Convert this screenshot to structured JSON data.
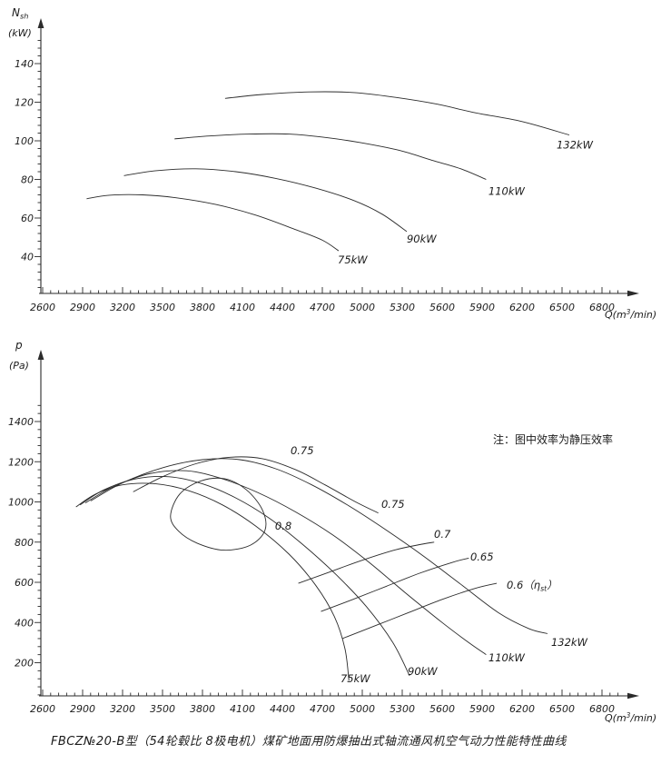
{
  "caption": "FBCZ№20-B型（54轮毂比 8极电机）煤矿地面用防爆抽出式轴流通风机空气动力性能特性曲线",
  "note": "注：图中效率为静压效率",
  "colors": {
    "line": "#2b2b2b",
    "text": "#1c1c1c",
    "background": "#ffffff"
  },
  "chart_data": [
    {
      "id": "shaft-power",
      "type": "line",
      "title": "",
      "xlabel": "Q(m³/min)",
      "ylabel": "Nsh(kW)",
      "ylabel_lines": [
        "Nsh",
        "(kW)"
      ],
      "xlim": [
        2600,
        6800
      ],
      "x_tick_step": 300,
      "x_minor_step": 60,
      "x_ticks": [
        2600,
        2900,
        3200,
        3500,
        3800,
        4100,
        4400,
        4700,
        5000,
        5300,
        5600,
        5900,
        6200,
        6500,
        6800
      ],
      "ylim": [
        40,
        140
      ],
      "y_ticks": [
        40,
        60,
        80,
        100,
        120,
        140
      ],
      "y_minor_step": 4,
      "grid": false,
      "legend": "curve-end-labels",
      "series": [
        {
          "name": "75kW",
          "kind": "shaft-power-curve",
          "points": [
            [
              2930,
              70
            ],
            [
              3100,
              71.8
            ],
            [
              3350,
              72
            ],
            [
              3600,
              70.5
            ],
            [
              3900,
              67
            ],
            [
              4200,
              61.5
            ],
            [
              4500,
              54
            ],
            [
              4700,
              48.5
            ],
            [
              4823,
              43
            ]
          ],
          "labels": [
            {
              "text": "75kW",
              "at": [
                4816,
                36.5
              ]
            }
          ]
        },
        {
          "name": "90kW",
          "kind": "shaft-power-curve",
          "points": [
            [
              3210,
              82
            ],
            [
              3450,
              84.5
            ],
            [
              3750,
              85.5
            ],
            [
              4050,
              84
            ],
            [
              4350,
              80.5
            ],
            [
              4650,
              75.5
            ],
            [
              4940,
              69
            ],
            [
              5150,
              62
            ],
            [
              5334,
              53
            ]
          ],
          "labels": [
            {
              "text": "90kW",
              "at": [
                5334,
                47.3
              ]
            }
          ]
        },
        {
          "name": "110kW",
          "kind": "shaft-power-curve",
          "points": [
            [
              3590,
              101
            ],
            [
              3850,
              102.5
            ],
            [
              4150,
              103.5
            ],
            [
              4450,
              103.5
            ],
            [
              4750,
              101.5
            ],
            [
              4990,
              99
            ],
            [
              5280,
              95
            ],
            [
              5520,
              90
            ],
            [
              5740,
              85.5
            ],
            [
              5930,
              80
            ]
          ],
          "labels": [
            {
              "text": "110kW",
              "at": [
                5947,
                72
              ]
            }
          ]
        },
        {
          "name": "132kW",
          "kind": "shaft-power-curve",
          "points": [
            [
              3970,
              122
            ],
            [
              4250,
              124
            ],
            [
              4600,
              125.3
            ],
            [
              4940,
              125
            ],
            [
              5250,
              122.5
            ],
            [
              5560,
              119
            ],
            [
              5850,
              114.5
            ],
            [
              6200,
              110
            ],
            [
              6554,
              103
            ]
          ],
          "labels": [
            {
              "text": "132kW",
              "at": [
                6459,
                96
              ]
            }
          ]
        }
      ]
    },
    {
      "id": "static-pressure",
      "type": "line",
      "title": "",
      "xlabel": "Q(m³/min)",
      "ylabel": "p(Pa)",
      "ylabel_lines": [
        "p",
        "(Pa)"
      ],
      "xlim": [
        2600,
        6800
      ],
      "x_tick_step": 300,
      "x_minor_step": 60,
      "x_ticks": [
        2600,
        2900,
        3200,
        3500,
        3800,
        4100,
        4400,
        4700,
        5000,
        5300,
        5600,
        5900,
        6200,
        6500,
        6800
      ],
      "ylim": [
        200,
        1400
      ],
      "y_ticks": [
        200,
        400,
        600,
        800,
        1000,
        1200,
        1400
      ],
      "y_minor_step": 40,
      "grid": false,
      "note": "注：图中效率为静压效率",
      "note_at": [
        5982,
        1292
      ],
      "series": [
        {
          "name": "75kW",
          "kind": "pressure-curve",
          "points": [
            [
              2850,
              975
            ],
            [
              3000,
              1040
            ],
            [
              3200,
              1085
            ],
            [
              3450,
              1090
            ],
            [
              3700,
              1055
            ],
            [
              3950,
              985
            ],
            [
              4200,
              880
            ],
            [
              4450,
              740
            ],
            [
              4650,
              585
            ],
            [
              4790,
              430
            ],
            [
              4870,
              270
            ],
            [
              4900,
              110
            ]
          ],
          "labels": [
            {
              "text": "75kW",
              "at": [
                4836,
                103
              ]
            }
          ]
        },
        {
          "name": "90kW",
          "kind": "pressure-curve",
          "points": [
            [
              2880,
              985
            ],
            [
              3060,
              1060
            ],
            [
              3300,
              1115
            ],
            [
              3550,
              1125
            ],
            [
              3800,
              1090
            ],
            [
              4050,
              1020
            ],
            [
              4300,
              920
            ],
            [
              4550,
              790
            ],
            [
              4800,
              640
            ],
            [
              5030,
              480
            ],
            [
              5230,
              300
            ],
            [
              5355,
              135
            ]
          ],
          "labels": [
            {
              "text": "90kW",
              "at": [
                5341,
                139
              ]
            }
          ]
        },
        {
          "name": "110kW",
          "kind": "pressure-curve",
          "points": [
            [
              2920,
              995
            ],
            [
              3130,
              1075
            ],
            [
              3400,
              1140
            ],
            [
              3680,
              1155
            ],
            [
              3950,
              1115
            ],
            [
              4220,
              1045
            ],
            [
              4500,
              950
            ],
            [
              4780,
              835
            ],
            [
              5050,
              700
            ],
            [
              5320,
              550
            ],
            [
              5600,
              400
            ],
            [
              5800,
              300
            ],
            [
              5930,
              240
            ]
          ],
          "labels": [
            {
              "text": "110kW",
              "at": [
                5947,
                207
              ]
            }
          ]
        },
        {
          "name": "132kW",
          "kind": "pressure-curve",
          "points": [
            [
              2960,
              1005
            ],
            [
              3200,
              1095
            ],
            [
              3500,
              1170
            ],
            [
              3800,
              1210
            ],
            [
              4080,
              1210
            ],
            [
              4350,
              1165
            ],
            [
              4620,
              1085
            ],
            [
              4900,
              980
            ],
            [
              5180,
              860
            ],
            [
              5460,
              730
            ],
            [
              5740,
              590
            ],
            [
              6020,
              450
            ],
            [
              6250,
              370
            ],
            [
              6390,
              345
            ]
          ],
          "labels": [
            {
              "text": "132kW",
              "at": [
                6418,
                284
              ]
            }
          ]
        },
        {
          "name": "eta-0.8",
          "kind": "efficiency-contour",
          "closed": true,
          "points": [
            [
              3560,
              930
            ],
            [
              3630,
              1040
            ],
            [
              3790,
              1105
            ],
            [
              3970,
              1115
            ],
            [
              4130,
              1060
            ],
            [
              4250,
              960
            ],
            [
              4270,
              860
            ],
            [
              4160,
              785
            ],
            [
              3960,
              760
            ],
            [
              3760,
              795
            ],
            [
              3620,
              855
            ]
          ],
          "labels": [
            {
              "text": "0.8",
              "at": [
                4345,
                862
              ]
            }
          ]
        },
        {
          "name": "eta-0.75",
          "kind": "efficiency-contour",
          "points": [
            [
              3280,
              1050
            ],
            [
              3500,
              1125
            ],
            [
              3750,
              1190
            ],
            [
              4000,
              1222
            ],
            [
              4250,
              1215
            ],
            [
              4500,
              1160
            ],
            [
              4720,
              1085
            ],
            [
              4950,
              1000
            ],
            [
              5120,
              945
            ]
          ],
          "labels": [
            {
              "text": "0.75",
              "at": [
                4461,
                1237
              ]
            },
            {
              "text": "0.75",
              "at": [
                5143,
                971
              ]
            }
          ]
        },
        {
          "name": "eta-0.7",
          "kind": "efficiency-contour",
          "points": [
            [
              4520,
              595
            ],
            [
              4750,
              650
            ],
            [
              5000,
              710
            ],
            [
              5250,
              762
            ],
            [
              5450,
              790
            ],
            [
              5540,
              800
            ]
          ],
          "labels": [
            {
              "text": "0.7",
              "at": [
                5539,
                821
              ]
            }
          ]
        },
        {
          "name": "eta-0.65",
          "kind": "efficiency-contour",
          "points": [
            [
              4690,
              455
            ],
            [
              4930,
              515
            ],
            [
              5180,
              580
            ],
            [
              5430,
              645
            ],
            [
              5680,
              700
            ],
            [
              5800,
              720
            ]
          ],
          "labels": [
            {
              "text": "0.65",
              "at": [
                5811,
                708
              ]
            }
          ]
        },
        {
          "name": "eta-0.6",
          "kind": "efficiency-contour",
          "points": [
            [
              4850,
              320
            ],
            [
              5100,
              385
            ],
            [
              5350,
              450
            ],
            [
              5600,
              515
            ],
            [
              5850,
              570
            ],
            [
              6010,
              595
            ]
          ],
          "labels": [
            {
              "text": "0.6（ηst）",
              "at": [
                6084,
                568
              ]
            }
          ]
        }
      ]
    }
  ]
}
